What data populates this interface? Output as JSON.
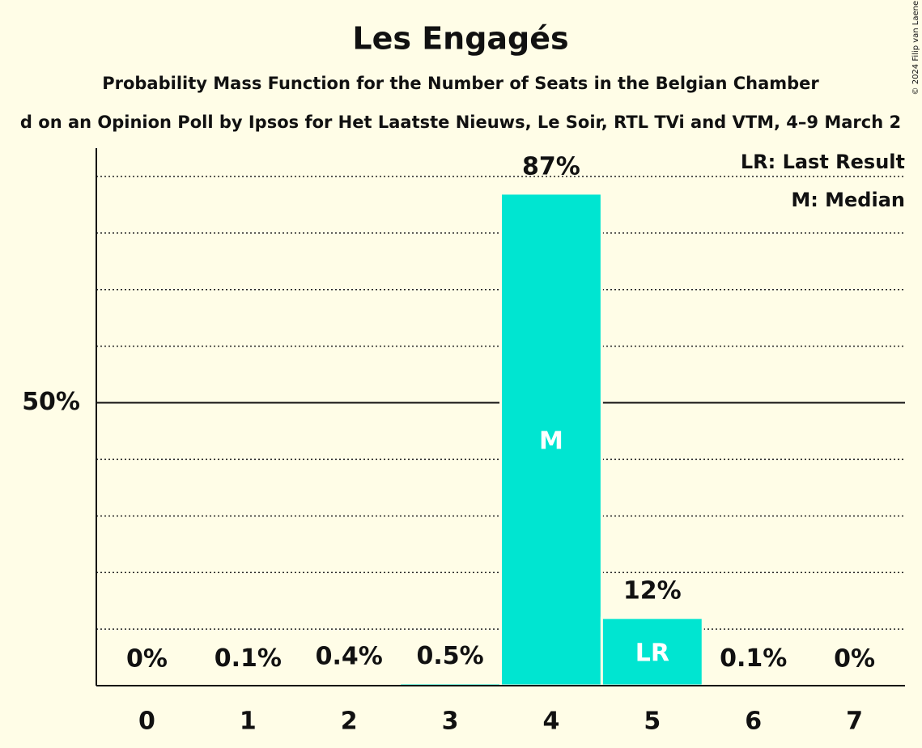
{
  "chart_data": {
    "type": "bar",
    "title": "Les Engagés",
    "subtitle": "Probability Mass Function for the Number of Seats in the Belgian Chamber",
    "subtitle2": "d on an Opinion Poll by Ipsos for Het Laatste Nieuws, Le Soir, RTL TVi and VTM, 4–9 March 2",
    "copyright": "© 2024 Filip van Laenen",
    "categories": [
      "0",
      "1",
      "2",
      "3",
      "4",
      "5",
      "6",
      "7"
    ],
    "values": [
      0,
      0.1,
      0.4,
      0.5,
      87,
      12,
      0.1,
      0
    ],
    "value_labels": [
      "0%",
      "0.1%",
      "0.4%",
      "0.5%",
      "87%",
      "12%",
      "0.1%",
      "0%"
    ],
    "color": "#00e5d1",
    "ylim": [
      0,
      95
    ],
    "yticks": [
      {
        "value": 50,
        "label": "50%"
      }
    ],
    "minor_yticks": [
      10,
      20,
      30,
      40,
      60,
      70,
      80,
      90
    ],
    "grid": true,
    "bar_markers": [
      {
        "index": 4,
        "label": "M"
      },
      {
        "index": 5,
        "label": "LR"
      }
    ],
    "legend": [
      "LR: Last Result",
      "M: Median"
    ]
  }
}
